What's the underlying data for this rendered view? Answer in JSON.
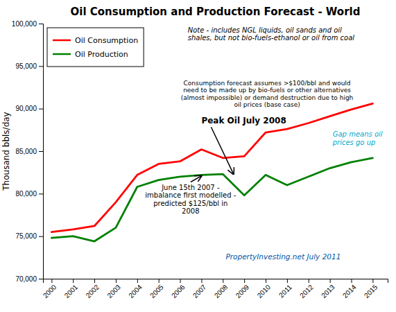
{
  "chart_data": {
    "type": "line",
    "title": "Oil Consumption and Production Forecast - World",
    "ylabel": "Thousand bbls/day",
    "x": [
      2000,
      2001,
      2002,
      2003,
      2004,
      2005,
      2006,
      2007,
      2008,
      2009,
      2010,
      2011,
      2012,
      2013,
      2014,
      2015
    ],
    "xlim": [
      1999.6,
      2015.7
    ],
    "xticks": [
      2000,
      2001,
      2002,
      2003,
      2004,
      2005,
      2006,
      2007,
      2008,
      2009,
      2010,
      2011,
      2012,
      2013,
      2014,
      2015
    ],
    "ylim": [
      70000,
      100000
    ],
    "yticks": [
      {
        "value": 70000,
        "label": "70,000"
      },
      {
        "value": 75000,
        "label": "75,000"
      },
      {
        "value": 80000,
        "label": "80,000"
      },
      {
        "value": 85000,
        "label": "85,000"
      },
      {
        "value": 90000,
        "label": "90,000"
      },
      {
        "value": 95000,
        "label": "95,000"
      },
      {
        "value": 100000,
        "label": "100,000"
      }
    ],
    "series": [
      {
        "name": "Oil Consumption",
        "color": "#ff0000",
        "values": [
          75500,
          75800,
          76200,
          79000,
          82200,
          83500,
          83800,
          85200,
          84200,
          84400,
          87200,
          87600,
          88300,
          89100,
          89900,
          90600
        ]
      },
      {
        "name": "Oil Production",
        "color": "#008000",
        "values": [
          74800,
          75000,
          74400,
          76000,
          80800,
          81600,
          82000,
          82200,
          82300,
          79800,
          82200,
          81000,
          82000,
          83000,
          83700,
          84200
        ]
      }
    ],
    "legend": "upper left",
    "grid": false,
    "annotations": [
      {
        "text": "Note - includes NGL liquids, oil sands and oil\nshales, but not bio-fuels-ethanol or oil from coal"
      },
      {
        "text": "Consumption forecast assumes >$100/bbl and would\nneed to be made up by bio-fuels or other alternatives\n(almost impossible) or demand destruction due to high\noil prices (base case)"
      },
      {
        "text": "Peak Oil July 2008",
        "x": 2008.5,
        "y": 82300
      },
      {
        "text": "June 15th 2007 -\nimbalance first modelled -\npredicted $125/bbl in\n2008",
        "x": 2007,
        "y": 82100
      },
      {
        "text": "Gap means oil\nprices go up",
        "color": "#00aacc"
      },
      {
        "text": "PropertyInvesting.net  July 2011",
        "color": "#0055aa"
      }
    ]
  }
}
